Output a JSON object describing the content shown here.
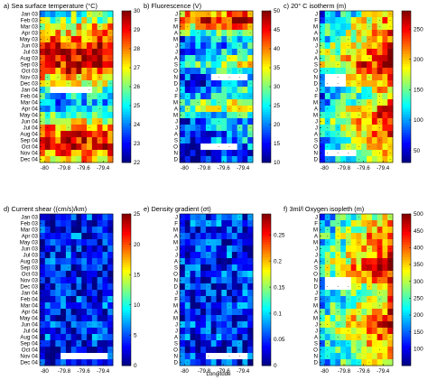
{
  "figure": {
    "xlabel": "Longitude"
  },
  "chart_data": [
    {
      "type": "heatmap",
      "panel": "a",
      "title": "a) Sea surface temperature (°C)",
      "x_ticks": [
        "-80",
        "-79.8",
        "-79.6",
        "-79.4"
      ],
      "y_ticks": [
        "Jan 03",
        "Feb 03",
        "Mar 03",
        "Apr 03",
        "May 03",
        "Jun 03",
        "Jul 03",
        "Aug 03",
        "Sep 03",
        "Oct 03",
        "Nov 03",
        "Dec 03",
        "Jan 04",
        "Feb 04",
        "Mar 04",
        "Apr 04",
        "May 04",
        "Jun 04",
        "Jul 04",
        "Aug 04",
        "Sep 04",
        "Oct 04",
        "Nov 04",
        "Dec 04"
      ],
      "colorbar_ticks": [
        "22",
        "23",
        "24",
        "25",
        "26",
        "27",
        "28",
        "29",
        "30"
      ],
      "zlim": [
        22,
        30
      ],
      "xlim": [
        -80.05,
        -79.3
      ],
      "monthly_mean": [
        25.5,
        26.2,
        27.2,
        27.5,
        28.2,
        28.8,
        29.3,
        29.4,
        29.2,
        28.6,
        27.4,
        26.6,
        25.6,
        24.8,
        24.2,
        24.4,
        25.5,
        26.6,
        27.8,
        28.4,
        28.8,
        28.9,
        28.2,
        27.5
      ],
      "cross_shore_trend": 0.4,
      "gaps": [
        {
          "row": 12,
          "from": 0.15,
          "to": 0.72
        }
      ],
      "colormap": "jet"
    },
    {
      "type": "heatmap",
      "panel": "b",
      "title": "b) Fluorescence (V)",
      "x_ticks": [
        "-80",
        "-79.8",
        "-79.6",
        "-79.4"
      ],
      "y_ticks": [
        "J",
        "F",
        "M",
        "A",
        "M",
        "J",
        "J",
        "A",
        "S",
        "O",
        "N",
        "D",
        "J",
        "F",
        "M",
        "A",
        "M",
        "J",
        "J",
        "A",
        "S",
        "O",
        "N",
        "D"
      ],
      "colorbar_ticks": [
        "10",
        "15",
        "20",
        "25",
        "30",
        "35",
        "40",
        "45",
        "50"
      ],
      "zlim": [
        10,
        50
      ],
      "xlim": [
        -80.05,
        -79.3
      ],
      "monthly_mean": [
        40,
        44,
        38,
        30,
        22,
        20,
        24,
        28,
        30,
        26,
        20,
        18,
        22,
        24,
        30,
        32,
        26,
        20,
        22,
        18,
        20,
        16,
        14,
        16
      ],
      "cross_shore_trend": 8,
      "gaps": [
        {
          "row": 10,
          "from": 0.45,
          "to": 0.95
        },
        {
          "row": 21,
          "from": 0.3,
          "to": 0.75
        }
      ],
      "colormap": "jet"
    },
    {
      "type": "heatmap",
      "panel": "c",
      "title": "c) 20° C isotherm (m)",
      "x_ticks": [
        "-80",
        "-79.8",
        "-79.6",
        "-79.4"
      ],
      "y_ticks": [
        "J",
        "F",
        "M",
        "A",
        "M",
        "J",
        "J",
        "A",
        "S",
        "O",
        "N",
        "D",
        "J",
        "F",
        "M",
        "A",
        "M",
        "J",
        "J",
        "A",
        "S",
        "O",
        "N",
        "D"
      ],
      "colorbar_ticks": [
        "50",
        "100",
        "150",
        "200",
        "250"
      ],
      "zlim": [
        30,
        280
      ],
      "xlim": [
        -80.05,
        -79.3
      ],
      "monthly_mean": [
        140,
        160,
        170,
        180,
        170,
        190,
        200,
        210,
        220,
        200,
        180,
        170,
        150,
        140,
        160,
        180,
        190,
        200,
        190,
        180,
        170,
        160,
        150,
        150
      ],
      "cross_shore_trend": 120,
      "gaps": [
        {
          "row": 10,
          "from": 0.05,
          "to": 0.35
        },
        {
          "row": 11,
          "from": 0.05,
          "to": 0.35
        },
        {
          "row": 22,
          "from": 0.1,
          "to": 0.5
        }
      ],
      "colormap": "jet"
    },
    {
      "type": "heatmap",
      "panel": "d",
      "title": "d) Current shear ((cm/s)/km)",
      "x_ticks": [
        "-80",
        "-79.8",
        "-79.6",
        "-79.4"
      ],
      "y_ticks": [
        "Jan 03",
        "Feb 03",
        "Mar 03",
        "Apr 03",
        "May 03",
        "Jun 03",
        "Jul 03",
        "Aug 03",
        "Sep 03",
        "Oct 03",
        "Nov 03",
        "Dec 03",
        "Jan 04",
        "Feb 04",
        "Mar 04",
        "Apr 04",
        "May 04",
        "Jun 04",
        "Jul 04",
        "Aug 04",
        "Sep 04",
        "Oct 04",
        "Nov 04",
        "Dec 04"
      ],
      "colorbar_ticks": [
        "0",
        "5",
        "10",
        "15",
        "20",
        "25"
      ],
      "zlim": [
        0,
        25
      ],
      "xlim": [
        -80.05,
        -79.3
      ],
      "monthly_mean": [
        4,
        3,
        3,
        4,
        3,
        3,
        4,
        4,
        3,
        3,
        4,
        3,
        3,
        4,
        4,
        3,
        3,
        4,
        3,
        4,
        4,
        3,
        3,
        3
      ],
      "cross_shore_trend": 0,
      "gaps": [
        {
          "row": 22,
          "from": 0.3,
          "to": 0.9
        }
      ],
      "colormap": "jet"
    },
    {
      "type": "heatmap",
      "panel": "e",
      "title": "e) Density gradient (σt)",
      "x_ticks": [
        "-80",
        "-79.8",
        "-79.6",
        "-79.4"
      ],
      "y_ticks": [
        "J",
        "F",
        "M",
        "A",
        "M",
        "J",
        "J",
        "A",
        "S",
        "O",
        "N",
        "D",
        "J",
        "F",
        "M",
        "A",
        "M",
        "J",
        "J",
        "A",
        "S",
        "O",
        "N",
        "D"
      ],
      "colorbar_ticks": [
        "0",
        "0.05",
        "0.1",
        "0.15",
        "0.2",
        "0.25"
      ],
      "zlim": [
        0,
        0.29
      ],
      "xlim": [
        -80.05,
        -79.3
      ],
      "monthly_mean": [
        0.05,
        0.05,
        0.04,
        0.05,
        0.04,
        0.04,
        0.05,
        0.04,
        0.04,
        0.05,
        0.04,
        0.04,
        0.05,
        0.04,
        0.05,
        0.04,
        0.04,
        0.05,
        0.04,
        0.05,
        0.04,
        0.04,
        0.04,
        0.04
      ],
      "cross_shore_trend": 0,
      "gaps": [
        {
          "row": 22,
          "from": 0.35,
          "to": 0.9
        }
      ],
      "colormap": "jet"
    },
    {
      "type": "heatmap",
      "panel": "f",
      "title": "f) 3ml/l Oxygen isopleth (m)",
      "x_ticks": [
        "-80",
        "-79.8",
        "-79.6",
        "-79.4"
      ],
      "y_ticks": [
        "J",
        "F",
        "M",
        "A",
        "M",
        "J",
        "J",
        "A",
        "S",
        "O",
        "N",
        "D",
        "J",
        "F",
        "M",
        "A",
        "M",
        "J",
        "J",
        "A",
        "S",
        "O",
        "N",
        "D"
      ],
      "colorbar_ticks": [
        "100",
        "150",
        "200",
        "250",
        "300",
        "350",
        "400",
        "450",
        "500"
      ],
      "zlim": [
        50,
        500
      ],
      "xlim": [
        -80.05,
        -79.3
      ],
      "monthly_mean": [
        260,
        280,
        300,
        320,
        300,
        320,
        340,
        360,
        380,
        340,
        300,
        280,
        260,
        270,
        300,
        320,
        340,
        360,
        340,
        320,
        300,
        280,
        260,
        270
      ],
      "cross_shore_trend": 220,
      "gaps": [
        {
          "row": 10,
          "from": 0.1,
          "to": 0.45
        },
        {
          "row": 11,
          "from": 0.1,
          "to": 0.45
        }
      ],
      "colormap": "jet"
    }
  ]
}
